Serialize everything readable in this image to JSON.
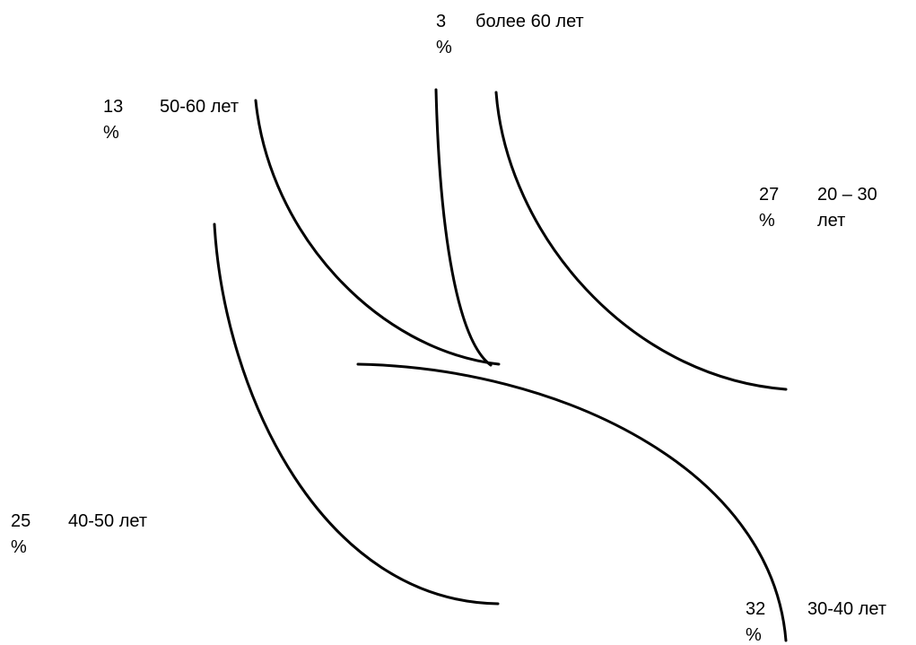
{
  "chart_data": {
    "type": "pie",
    "categories": [
      "20 – 30 лет",
      "30-40 лет",
      "40-50 лет",
      "50-60 лет",
      "более 60 лет"
    ],
    "values": [
      27,
      32,
      25,
      13,
      3
    ],
    "unit": "%",
    "labels": [
      {
        "value": "27",
        "unit": "%",
        "category_lines": [
          "20 – 30",
          "лет"
        ]
      },
      {
        "value": "32",
        "unit": "%",
        "category_lines": [
          "30-40 лет"
        ]
      },
      {
        "value": "25",
        "unit": "%",
        "category_lines": [
          "40-50 лет"
        ]
      },
      {
        "value": "13",
        "unit": "%",
        "category_lines": [
          "50-60 лет"
        ]
      },
      {
        "value": "3",
        "unit": "%",
        "category_lines": [
          "более 60 лет"
        ]
      }
    ]
  }
}
